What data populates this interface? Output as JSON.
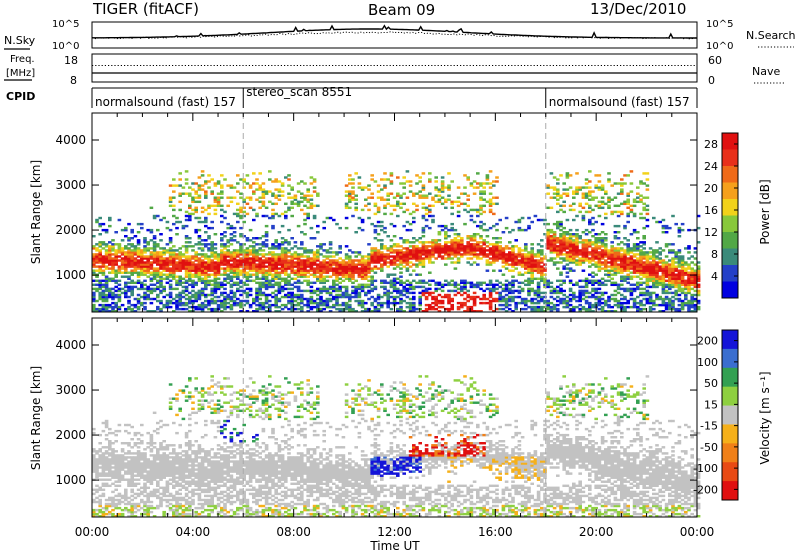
{
  "header": {
    "title": "TIGER (fitACF)",
    "beam": "Beam 09",
    "date": "13/Dec/2010"
  },
  "strip": {
    "nsky_label": "N.Sky",
    "nsky_ticks": [
      "10^5",
      "10^0"
    ],
    "nsearch_label": "N.Search",
    "nsearch_ticks": [
      "10^5",
      "10^0"
    ],
    "freq_label_line1": "Freq.",
    "freq_label_line2": "[MHz]",
    "freq_ticks": [
      "18",
      "8"
    ],
    "nave_label": "Nave",
    "nave_ticks": [
      "60",
      "0"
    ],
    "cpid_label": "CPID"
  },
  "cpid_segments": [
    {
      "label": "normalsound (fast) 157",
      "start_hour": 0,
      "end_hour": 6
    },
    {
      "label": "stereo_scan 8551",
      "start_hour": 6,
      "end_hour": 18
    },
    {
      "label": "normalsound (fast) 157",
      "start_hour": 18,
      "end_hour": 24
    }
  ],
  "colors": {
    "power_scale": [
      "#0000e0",
      "#2440c8",
      "#3a8a7a",
      "#52a846",
      "#88c83a",
      "#f2d21a",
      "#f5a01c",
      "#ef6a18",
      "#e8301a",
      "#e01010"
    ],
    "velocity_scale": [
      "#1414d8",
      "#3a6ed0",
      "#33a052",
      "#8ed040",
      "#c2c2c2",
      "#f5b01a",
      "#f08018",
      "#e84a14",
      "#e01010"
    ]
  },
  "chart_data": [
    {
      "type": "heatmap",
      "name": "Power",
      "title": "",
      "xlabel": "Time UT",
      "ylabel": "Slant Range [km]",
      "xlim": [
        0,
        24
      ],
      "ylim": [
        180,
        4600
      ],
      "x_ticks": [
        "00:00",
        "04:00",
        "08:00",
        "12:00",
        "16:00",
        "20:00",
        "00:00"
      ],
      "y_ticks": [
        "1000",
        "2000",
        "3000",
        "4000"
      ],
      "colorbar_label": "Power [dB]",
      "colorbar_ticks": [
        "4",
        "8",
        "12",
        "16",
        "20",
        "24",
        "28"
      ],
      "colorbar_range": [
        0,
        30
      ]
    },
    {
      "type": "heatmap",
      "name": "Velocity",
      "title": "",
      "xlabel": "Time UT",
      "ylabel": "Slant Range [km]",
      "xlim": [
        0,
        24
      ],
      "ylim": [
        180,
        4600
      ],
      "x_ticks": [
        "00:00",
        "04:00",
        "08:00",
        "12:00",
        "16:00",
        "20:00",
        "00:00"
      ],
      "y_ticks": [
        "1000",
        "2000",
        "3000",
        "4000"
      ],
      "colorbar_label": "Velocity [m s⁻¹]",
      "colorbar_ticks": [
        "200",
        "100",
        "50",
        "15",
        "-15",
        "-50",
        "-100",
        "-200"
      ],
      "colorbar_range": [
        -250,
        250
      ]
    }
  ]
}
